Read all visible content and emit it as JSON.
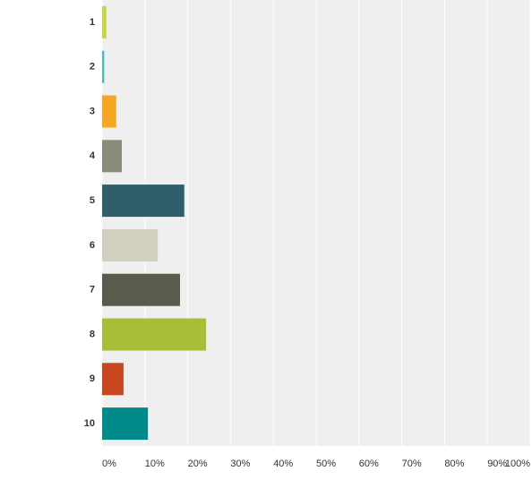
{
  "chart_data": {
    "type": "bar",
    "orientation": "horizontal",
    "categories": [
      "1",
      "2",
      "3",
      "4",
      "5",
      "6",
      "7",
      "8",
      "9",
      "10"
    ],
    "values": [
      1,
      0.5,
      3.3,
      4.6,
      19.2,
      13,
      18.2,
      24.3,
      5,
      10.7
    ],
    "colors": [
      "#c8d443",
      "#4cb8c4",
      "#f5a623",
      "#8b8b7a",
      "#2e5f6b",
      "#d0cfc0",
      "#5a5a4d",
      "#a8bd38",
      "#c8471e",
      "#008b8b"
    ],
    "xlim": [
      0,
      100
    ],
    "xticks": [
      {
        "value": 0,
        "label": "0%"
      },
      {
        "value": 10,
        "label": "10%"
      },
      {
        "value": 20,
        "label": "20%"
      },
      {
        "value": 30,
        "label": "30%"
      },
      {
        "value": 40,
        "label": "40%"
      },
      {
        "value": 50,
        "label": "50%"
      },
      {
        "value": 60,
        "label": "60%"
      },
      {
        "value": 70,
        "label": "70%"
      },
      {
        "value": 80,
        "label": "80%"
      },
      {
        "value": 90,
        "label": "90%"
      },
      {
        "value": 100,
        "label": "100%"
      }
    ],
    "grid": true
  }
}
